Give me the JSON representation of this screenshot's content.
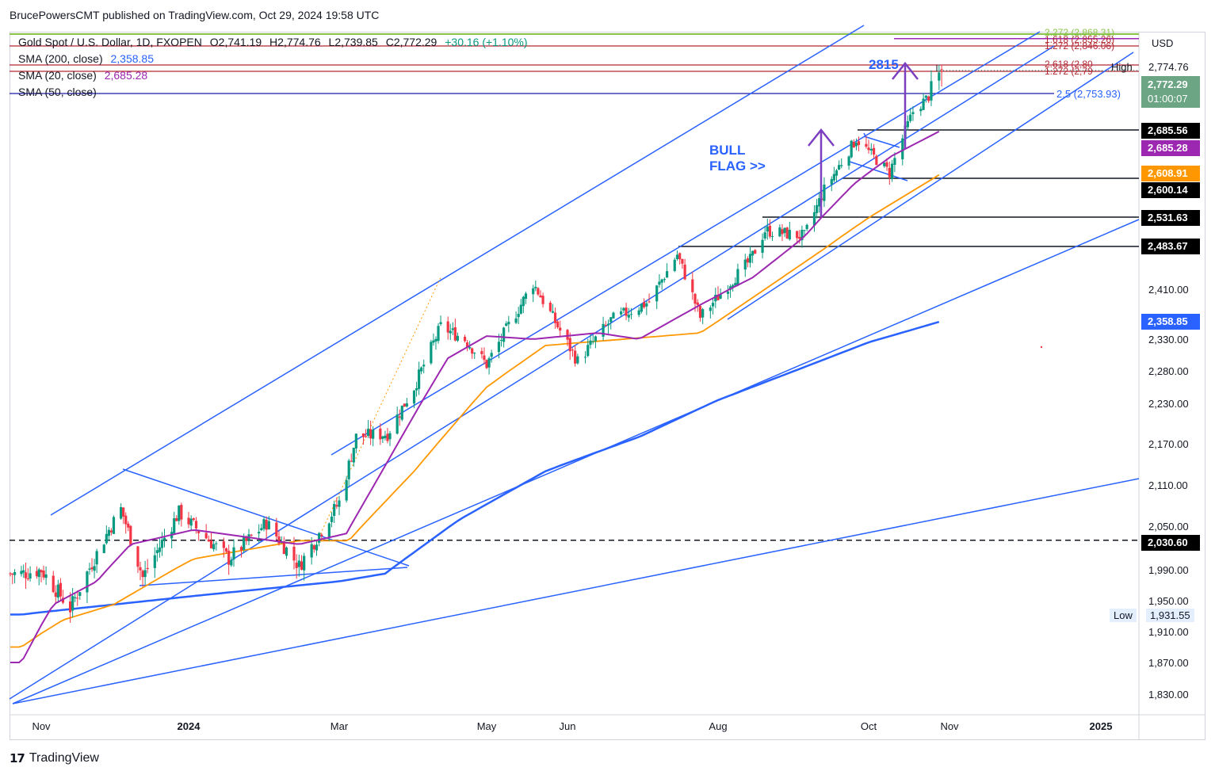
{
  "publisher": "BrucePowersCMT published on TradingView.com, Oct 29, 2024 19:58 UTC",
  "legend": {
    "symbol": "Gold Spot / U.S. Dollar, 1D, FXOPEN",
    "open": "O2,741.19",
    "high": "H2,774.76",
    "low": "L2,739.85",
    "close": "C2,772.29",
    "change": "+30.16 (+1.10%)",
    "sma200_label": "SMA (200, close)",
    "sma200_value": "2,358.85",
    "sma20_label": "SMA (20, close)",
    "sma20_value": "2,685.28",
    "sma50_label": "SMA (50, close)"
  },
  "currency": "USD",
  "footer": {
    "brand": "TradingView"
  },
  "annotations": {
    "bull_flag_line1": "BULL",
    "bull_flag_line2": "FLAG >>",
    "target": "2815"
  },
  "fib_labels": {
    "f2272": "2.272 (2,868.31)",
    "f1618": "1.618 (2,855.26)",
    "f1272": "1.272 (2,846.06)",
    "f2618": "2.618 (2,80",
    "f1272b": "1.272 (2,79",
    "f25": "2.5 (2,753.93)"
  },
  "high_label": "High",
  "high_value": "2,774.76",
  "low_label": "Low",
  "low_value": "1,931.55",
  "price_tags": {
    "last": "2,772.29",
    "countdown": "01:00:07",
    "level_2685_56": "2,685.56",
    "sma20": "2,685.28",
    "sma50": "2,608.91",
    "level_2600_14": "2,600.14",
    "level_2531_63": "2,531.63",
    "level_2483_67": "2,483.67",
    "sma200": "2,358.85",
    "level_2030_60": "2,030.60"
  },
  "colors": {
    "up": "#089981",
    "down": "#f23645",
    "trend": "#2962ff",
    "sma20": "#9c27b0",
    "sma50": "#ff9800",
    "sma200": "#2962ff",
    "fib_red": "#b22833"
  },
  "chart_data": {
    "type": "candlestick",
    "symbol": "XAUUSD",
    "timeframe": "1D",
    "x_ticks": [
      "Nov",
      "2024",
      "Mar",
      "May",
      "Jun",
      "Aug",
      "Oct",
      "Nov",
      "2025"
    ],
    "y_ticks": [
      1830,
      1870,
      1910,
      1950,
      1990,
      2050,
      2110,
      2170,
      2230,
      2280,
      2330,
      2410
    ],
    "ylim": [
      1810,
      2880
    ],
    "key_levels": [
      2685.56,
      2600.14,
      2531.63,
      2483.67,
      2030.6
    ],
    "fib_levels": [
      2868.31,
      2855.26,
      2846.06,
      2753.93
    ],
    "last_price": 2772.29,
    "period_high": 2774.76,
    "period_low": 1931.55,
    "sma20_last": 2685.28,
    "sma50_last": 2608.91,
    "sma200_last": 2358.85,
    "price_anchors": [
      [
        "2023-10-23",
        1985
      ],
      [
        "2023-11-01",
        1990
      ],
      [
        "2023-11-13",
        1940
      ],
      [
        "2023-11-29",
        2045
      ],
      [
        "2023-12-04",
        2075
      ],
      [
        "2023-12-13",
        1980
      ],
      [
        "2023-12-28",
        2070
      ],
      [
        "2024-01-17",
        2005
      ],
      [
        "2024-02-01",
        2055
      ],
      [
        "2024-02-14",
        1995
      ],
      [
        "2024-03-01",
        2085
      ],
      [
        "2024-03-08",
        2180
      ],
      [
        "2024-03-21",
        2185
      ],
      [
        "2024-04-01",
        2255
      ],
      [
        "2024-04-12",
        2350
      ],
      [
        "2024-04-22",
        2330
      ],
      [
        "2024-05-01",
        2290
      ],
      [
        "2024-05-20",
        2420
      ],
      [
        "2024-06-07",
        2295
      ],
      [
        "2024-06-20",
        2360
      ],
      [
        "2024-07-05",
        2390
      ],
      [
        "2024-07-16",
        2470
      ],
      [
        "2024-07-25",
        2365
      ],
      [
        "2024-08-14",
        2460
      ],
      [
        "2024-08-20",
        2510
      ],
      [
        "2024-09-05",
        2500
      ],
      [
        "2024-09-13",
        2580
      ],
      [
        "2024-09-26",
        2670
      ],
      [
        "2024-10-09",
        2610
      ],
      [
        "2024-10-18",
        2720
      ],
      [
        "2024-10-29",
        2772
      ]
    ],
    "sma20_anchors": [
      [
        "2023-10-23",
        1870
      ],
      [
        "2023-11-06",
        1945
      ],
      [
        "2023-11-24",
        1975
      ],
      [
        "2023-12-08",
        2025
      ],
      [
        "2024-01-03",
        2045
      ],
      [
        "2024-02-14",
        2025
      ],
      [
        "2024-03-04",
        2040
      ],
      [
        "2024-03-22",
        2150
      ],
      [
        "2024-04-15",
        2300
      ],
      [
        "2024-05-01",
        2335
      ],
      [
        "2024-05-20",
        2330
      ],
      [
        "2024-06-15",
        2340
      ],
      [
        "2024-07-01",
        2330
      ],
      [
        "2024-07-25",
        2385
      ],
      [
        "2024-08-15",
        2430
      ],
      [
        "2024-09-05",
        2500
      ],
      [
        "2024-09-25",
        2590
      ],
      [
        "2024-10-10",
        2640
      ],
      [
        "2024-10-29",
        2685.28
      ]
    ],
    "sma50_anchors": [
      [
        "2023-10-23",
        1890
      ],
      [
        "2023-11-10",
        1925
      ],
      [
        "2023-12-01",
        1945
      ],
      [
        "2024-01-03",
        2005
      ],
      [
        "2024-02-14",
        2030
      ],
      [
        "2024-03-05",
        2030
      ],
      [
        "2024-04-01",
        2130
      ],
      [
        "2024-05-01",
        2255
      ],
      [
        "2024-05-25",
        2320
      ],
      [
        "2024-06-25",
        2330
      ],
      [
        "2024-07-25",
        2340
      ],
      [
        "2024-08-20",
        2410
      ],
      [
        "2024-09-20",
        2500
      ],
      [
        "2024-10-29",
        2608.91
      ]
    ],
    "sma200_anchors": [
      [
        "2023-10-23",
        1932
      ],
      [
        "2023-12-01",
        1945
      ],
      [
        "2024-01-15",
        1960
      ],
      [
        "2024-03-01",
        1975
      ],
      [
        "2024-03-20",
        1985
      ],
      [
        "2024-04-20",
        2060
      ],
      [
        "2024-05-25",
        2130
      ],
      [
        "2024-07-01",
        2180
      ],
      [
        "2024-08-01",
        2235
      ],
      [
        "2024-09-01",
        2280
      ],
      [
        "2024-10-01",
        2325
      ],
      [
        "2024-10-29",
        2358.85
      ]
    ]
  }
}
